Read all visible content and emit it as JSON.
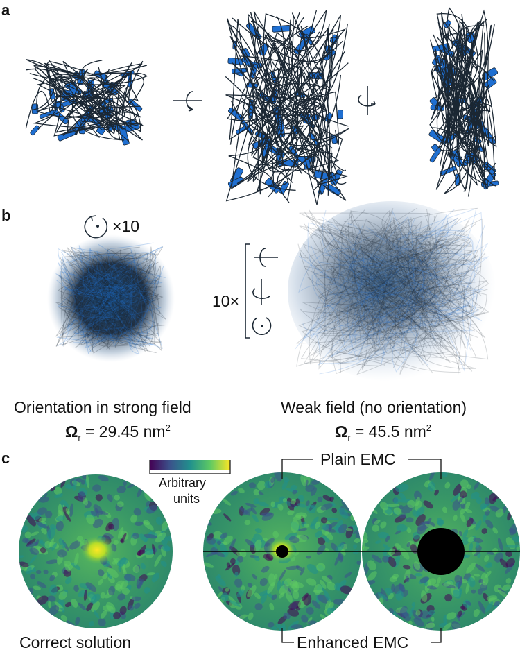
{
  "panel_a": {
    "letter": "a"
  },
  "panel_b": {
    "letter": "b",
    "rotation_count": "×10",
    "multiplier": "10×",
    "left_caption": "Orientation in strong field",
    "left_omega_symbol": "Ω",
    "left_omega_sub": "r",
    "left_omega_value": " = 29.45 nm",
    "left_omega_sup": "2",
    "right_caption": "Weak field (no orientation)",
    "right_omega_symbol": "Ω",
    "right_omega_sub": "r",
    "right_omega_value": " = 45.5 nm",
    "right_omega_sup": "2"
  },
  "panel_c": {
    "letter": "c",
    "colorbar_label_1": "Arbitrary",
    "colorbar_label_2": "units",
    "colormap": [
      "#440154",
      "#3b528b",
      "#21908d",
      "#5dc963",
      "#fde725"
    ],
    "plain_label": "Plain EMC",
    "enhanced_label": "Enhanced EMC",
    "correct_label": "Correct solution"
  },
  "colors": {
    "protein_blue": "#1f6fd1",
    "protein_outline": "#1b2733",
    "diffraction_green": "#3f9e63",
    "mask_black": "#000000"
  }
}
